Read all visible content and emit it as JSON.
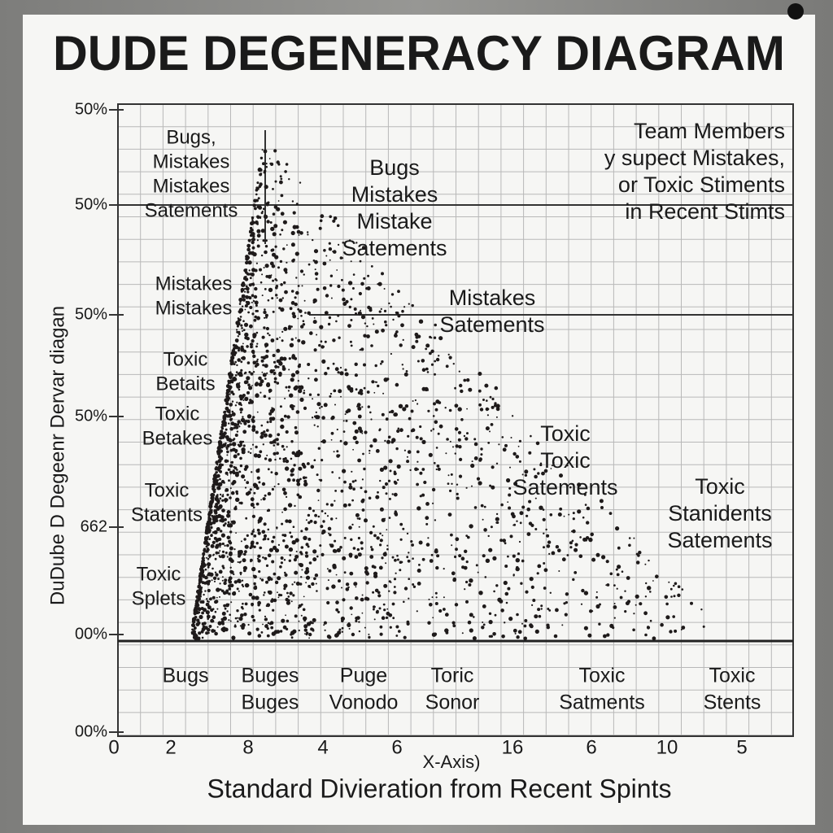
{
  "title": "DUDE DEGENERACY DIAGRAM",
  "y_axis_label": "DuDube D  Degeenr Dervar diagan",
  "y_ticks": [
    "50%",
    "50%",
    "50%",
    "50%",
    "662",
    "00%",
    "00%"
  ],
  "x_ticks": [
    "0",
    "2",
    "8",
    "4",
    "6",
    "16",
    "6",
    "10",
    "5"
  ],
  "x_axis_caption": "X-Axis)",
  "x_axis_label": "Standard Divieration from Recent Spints",
  "annotations": [
    {
      "lines": [
        "Bugs,",
        "Mistakes",
        "Mistakes",
        "Satements"
      ]
    },
    {
      "lines": [
        "Bugs",
        "Mistakes",
        "Mistake",
        "Satements"
      ]
    },
    {
      "lines": [
        "Team Members",
        "y supect Mistakes,",
        "or Toxic Stiments",
        "in Recent Stimts"
      ]
    },
    {
      "lines": [
        "Mistakes",
        "Mistakes"
      ]
    },
    {
      "lines": [
        "Mistakes",
        "Satements"
      ]
    },
    {
      "lines": [
        "Toxic",
        "Betaits"
      ]
    },
    {
      "lines": [
        "Toxic",
        "Betakes"
      ]
    },
    {
      "lines": [
        "Toxic",
        "Toxic",
        "Satements"
      ]
    },
    {
      "lines": [
        "Toxic",
        "Stanidents",
        "Satements"
      ]
    },
    {
      "lines": [
        "Toxic",
        "Statents"
      ]
    },
    {
      "lines": [
        "Toxic",
        "Splets"
      ]
    }
  ],
  "bottom_labels": [
    {
      "lines": [
        "Bugs"
      ]
    },
    {
      "lines": [
        "Buges",
        "Buges"
      ]
    },
    {
      "lines": [
        "Puge",
        "Vonodo"
      ]
    },
    {
      "lines": [
        "Toric",
        "Sonor"
      ]
    },
    {
      "lines": [
        "Toxic",
        "Satments"
      ]
    },
    {
      "lines": [
        "Toxic",
        "Stents"
      ]
    }
  ]
}
